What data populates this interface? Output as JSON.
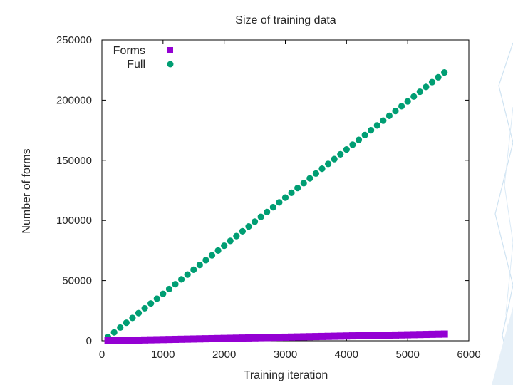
{
  "chart_data": {
    "type": "scatter",
    "title": "Size of training data",
    "xlabel": "Training iteration",
    "ylabel": "Number of forms",
    "xlim": [
      0,
      6000
    ],
    "ylim": [
      0,
      250000
    ],
    "x_ticks": [
      "0",
      "1000",
      "2000",
      "3000",
      "4000",
      "5000",
      "6000"
    ],
    "y_ticks": [
      "0",
      "50000",
      "100000",
      "150000",
      "200000",
      "250000"
    ],
    "grid": false,
    "legend_position": "top-left",
    "colors": {
      "forms": "#9400d3",
      "full": "#009e73"
    },
    "series": [
      {
        "name": "Forms",
        "marker": "square",
        "x": [
          100,
          200,
          300,
          400,
          500,
          600,
          700,
          800,
          900,
          1000,
          1100,
          1200,
          1300,
          1400,
          1500,
          1600,
          1700,
          1800,
          1900,
          2000,
          2100,
          2200,
          2300,
          2400,
          2500,
          2600,
          2700,
          2800,
          2900,
          3000,
          3100,
          3200,
          3300,
          3400,
          3500,
          3600,
          3700,
          3800,
          3900,
          4000,
          4100,
          4200,
          4300,
          4400,
          4500,
          4600,
          4700,
          4800,
          4900,
          5000,
          5100,
          5200,
          5300,
          5400,
          5500,
          5600
        ],
        "y": [
          100,
          200,
          300,
          400,
          500,
          600,
          700,
          800,
          900,
          1000,
          1100,
          1200,
          1300,
          1400,
          1500,
          1600,
          1700,
          1800,
          1900,
          2000,
          2100,
          2200,
          2300,
          2400,
          2500,
          2600,
          2700,
          2800,
          2900,
          3000,
          3100,
          3200,
          3300,
          3400,
          3500,
          3600,
          3700,
          3800,
          3900,
          4000,
          4100,
          4200,
          4300,
          4400,
          4500,
          4600,
          4700,
          4800,
          4900,
          5000,
          5100,
          5200,
          5300,
          5400,
          5500,
          5600
        ]
      },
      {
        "name": "Full",
        "marker": "circle",
        "x": [
          100,
          200,
          300,
          400,
          500,
          600,
          700,
          800,
          900,
          1000,
          1100,
          1200,
          1300,
          1400,
          1500,
          1600,
          1700,
          1800,
          1900,
          2000,
          2100,
          2200,
          2300,
          2400,
          2500,
          2600,
          2700,
          2800,
          2900,
          3000,
          3100,
          3200,
          3300,
          3400,
          3500,
          3600,
          3700,
          3800,
          3900,
          4000,
          4100,
          4200,
          4300,
          4400,
          4500,
          4600,
          4700,
          4800,
          4900,
          5000,
          5100,
          5200,
          5300,
          5400,
          5500,
          5600
        ],
        "y": [
          3000,
          7000,
          11000,
          15000,
          19000,
          23000,
          27000,
          31000,
          35000,
          39000,
          43000,
          47000,
          51000,
          55000,
          59000,
          63000,
          67000,
          71000,
          75000,
          79000,
          83000,
          87000,
          91000,
          95000,
          99000,
          103000,
          107000,
          111000,
          115000,
          119000,
          123000,
          127000,
          131000,
          135000,
          139000,
          143000,
          147000,
          151000,
          155000,
          159000,
          163000,
          167000,
          171000,
          175000,
          179000,
          183000,
          187000,
          191000,
          195000,
          199000,
          203000,
          207000,
          211000,
          215000,
          219000,
          223000
        ]
      }
    ]
  }
}
